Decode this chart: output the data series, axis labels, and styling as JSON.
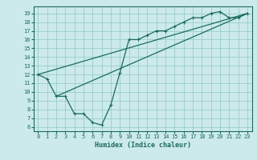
{
  "title": "",
  "xlabel": "Humidex (Indice chaleur)",
  "ylabel": "",
  "bg_color": "#cceaea",
  "grid_color": "#99cccc",
  "line_color": "#1a6b5a",
  "xlim": [
    -0.5,
    23.5
  ],
  "ylim": [
    5.5,
    19.8
  ],
  "xticks": [
    0,
    1,
    2,
    3,
    4,
    5,
    6,
    7,
    8,
    9,
    10,
    11,
    12,
    13,
    14,
    15,
    16,
    17,
    18,
    19,
    20,
    21,
    22,
    23
  ],
  "yticks": [
    6,
    7,
    8,
    9,
    10,
    11,
    12,
    13,
    14,
    15,
    16,
    17,
    18,
    19
  ],
  "line1_x": [
    0,
    1,
    2,
    3,
    4,
    5,
    6,
    7,
    8,
    9,
    10,
    11,
    12,
    13,
    14,
    15,
    16,
    17,
    18,
    19,
    20,
    21,
    22,
    23
  ],
  "line1_y": [
    12,
    11.5,
    9.5,
    9.5,
    7.5,
    7.5,
    6.5,
    6.2,
    8.5,
    12.2,
    16.0,
    16.0,
    16.5,
    17.0,
    17.0,
    17.5,
    18.0,
    18.5,
    18.5,
    19.0,
    19.2,
    18.5,
    18.5,
    19.0
  ],
  "line2_x": [
    0,
    23
  ],
  "line2_y": [
    12,
    19.0
  ],
  "line3_x": [
    2,
    23
  ],
  "line3_y": [
    9.5,
    19.0
  ],
  "tick_fontsize": 5.0,
  "xlabel_fontsize": 6.0
}
